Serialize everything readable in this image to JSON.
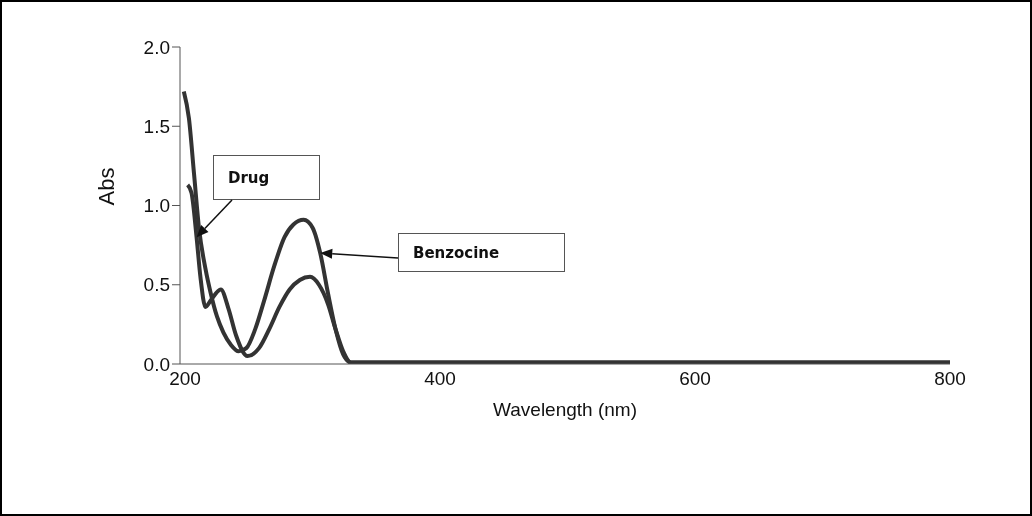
{
  "chart_data": {
    "type": "line",
    "xlabel": "Wavelength (nm)",
    "ylabel": "Abs",
    "xlim": [
      196,
      800
    ],
    "xticks": [
      200,
      400,
      600,
      800
    ],
    "ylim": [
      0,
      2
    ],
    "yticks": [
      {
        "value": 0,
        "label": "0.0"
      },
      0.5,
      {
        "value": 1,
        "label": "1.0"
      },
      1.5,
      {
        "value": 2,
        "label": "2.0"
      }
    ],
    "grid": false,
    "marker": "none",
    "line_style": "solid",
    "series": [
      {
        "name": "Drug",
        "color": "#333333",
        "x": [
          202,
          205,
          209,
          212,
          216,
          220,
          228,
          234,
          240,
          249,
          258,
          266,
          274,
          282,
          290,
          298,
          305,
          312,
          318,
          324,
          330,
          360,
          400,
          500,
          600,
          700,
          800
        ],
        "values": [
          1.13,
          1.08,
          0.8,
          0.55,
          0.36,
          0.4,
          0.47,
          0.35,
          0.18,
          0.05,
          0.1,
          0.22,
          0.36,
          0.47,
          0.53,
          0.55,
          0.5,
          0.38,
          0.22,
          0.08,
          0.01,
          0.01,
          0.01,
          0.01,
          0.01,
          0.01,
          0.01
        ]
      },
      {
        "name": "Benzocine",
        "color": "#333333",
        "x": [
          199,
          203,
          207,
          211,
          216,
          220,
          225,
          230,
          236,
          242,
          248,
          255,
          262,
          270,
          278,
          285,
          293,
          300,
          306,
          312,
          318,
          324,
          330,
          360,
          400,
          500,
          600,
          700,
          800
        ],
        "values": [
          1.72,
          1.55,
          1.2,
          0.85,
          0.6,
          0.45,
          0.3,
          0.2,
          0.12,
          0.08,
          0.1,
          0.22,
          0.4,
          0.62,
          0.8,
          0.88,
          0.91,
          0.86,
          0.7,
          0.45,
          0.22,
          0.06,
          0.01,
          0.01,
          0.01,
          0.01,
          0.01,
          0.01,
          0.01
        ]
      }
    ]
  }
}
